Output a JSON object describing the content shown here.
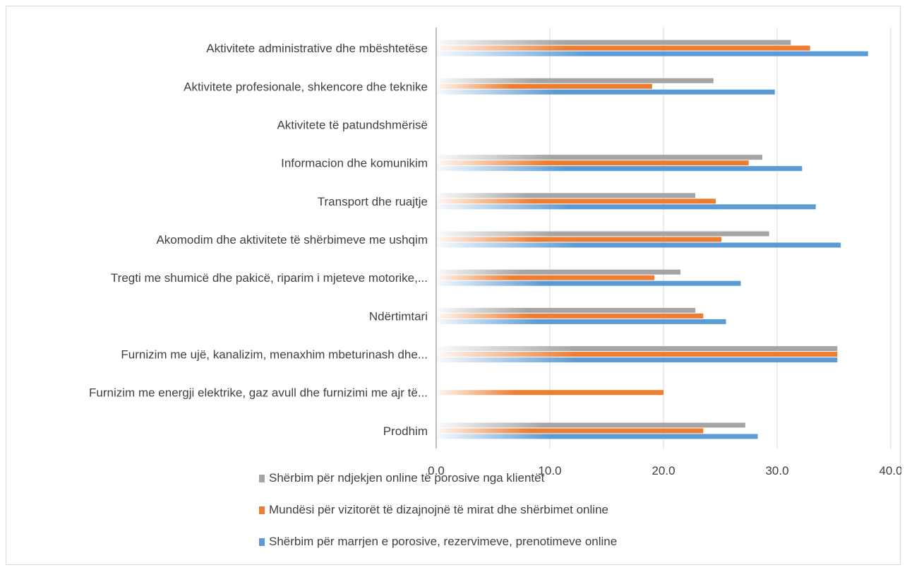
{
  "chart_data": {
    "type": "bar",
    "orientation": "horizontal",
    "categories": [
      "Aktivitete administrative dhe mbështetëse",
      "Aktivitete profesionale, shkencore dhe teknike",
      "Aktivitete të patundshmërisë",
      "Informacion dhe komunikim",
      "Transport dhe ruajtje",
      "Akomodim dhe aktivitete të shërbimeve me ushqim",
      "Tregti me shumicë dhe pakicë, riparim i mjeteve motorike,...",
      "Ndërtimtari",
      "Furnizim me ujë, kanalizim, menaxhim mbeturinash dhe...",
      "Furnizim me energji elektrike, gaz avull dhe furnizimi me ajr të...",
      "Prodhim"
    ],
    "series": [
      {
        "name": "Shërbim për ndjekjen online të porosive nga klientët",
        "color": "#a5a5a5",
        "values": [
          31.2,
          24.4,
          0,
          28.7,
          22.8,
          29.3,
          21.5,
          22.8,
          35.3,
          0,
          27.2
        ]
      },
      {
        "name": "Mundësi për vizitorët të dizajnojnë të mirat dhe shërbimet online",
        "color": "#ed7d31",
        "values": [
          32.9,
          19.0,
          0,
          27.5,
          24.6,
          25.1,
          19.2,
          23.5,
          35.3,
          20.0,
          23.5
        ]
      },
      {
        "name": "Shërbim për marrjen e porosive, rezervimeve, prenotimeve online",
        "color": "#5b9bd5",
        "values": [
          38.0,
          29.8,
          0,
          32.2,
          33.4,
          35.6,
          26.8,
          25.5,
          35.3,
          0,
          28.3
        ]
      }
    ],
    "x_ticks": [
      "0.0",
      "10.0",
      "20.0",
      "30.0",
      "40.0"
    ],
    "xlim": [
      0,
      40
    ],
    "grid": true,
    "legend_position": "bottom"
  }
}
